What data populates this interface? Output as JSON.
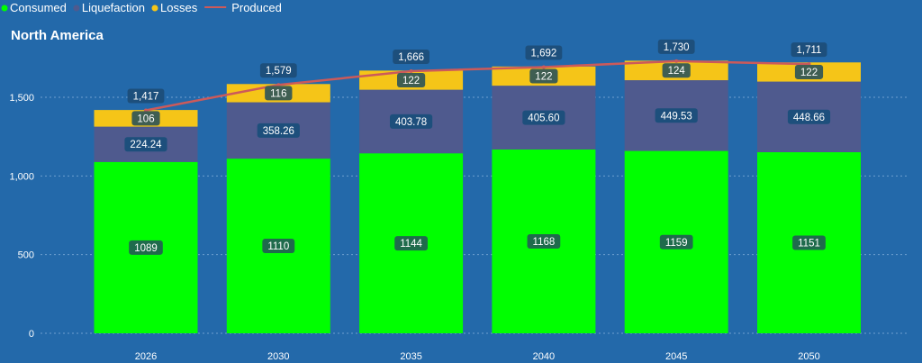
{
  "chart_data": {
    "type": "bar",
    "title": "North America",
    "categories": [
      "2026",
      "2030",
      "2035",
      "2040",
      "2045",
      "2050"
    ],
    "series": [
      {
        "name": "Consumed",
        "kind": "bar",
        "color": "#00ff00",
        "values": [
          1089,
          1110,
          1144,
          1168,
          1159,
          1151
        ],
        "labels": [
          "1089",
          "1110",
          "1144",
          "1168",
          "1159",
          "1151"
        ]
      },
      {
        "name": "Liquefaction",
        "kind": "bar",
        "color": "#4f5a8e",
        "values": [
          224.24,
          358.26,
          403.78,
          405.6,
          449.53,
          448.66
        ],
        "labels": [
          "224.24",
          "358.26",
          "403.78",
          "405.60",
          "449.53",
          "448.66"
        ]
      },
      {
        "name": "Losses",
        "kind": "bar",
        "color": "#f5c518",
        "values": [
          106,
          116,
          122,
          122,
          124,
          122
        ],
        "labels": [
          "106",
          "116",
          "122",
          "122",
          "124",
          "122"
        ]
      },
      {
        "name": "Produced",
        "kind": "line",
        "color": "#cc5a5a",
        "values": [
          1417,
          1579,
          1666,
          1692,
          1730,
          1711
        ],
        "labels": [
          "1,417",
          "1,579",
          "1,666",
          "1,692",
          "1,730",
          "1,711"
        ]
      }
    ],
    "yticks": [
      0,
      500,
      1000,
      1500
    ],
    "ytick_labels": [
      "0",
      "500",
      "1,000",
      "1,500"
    ],
    "ylim": [
      0,
      1700
    ],
    "grid": true,
    "legend_position": "top-left",
    "xlabel": "",
    "ylabel": ""
  }
}
